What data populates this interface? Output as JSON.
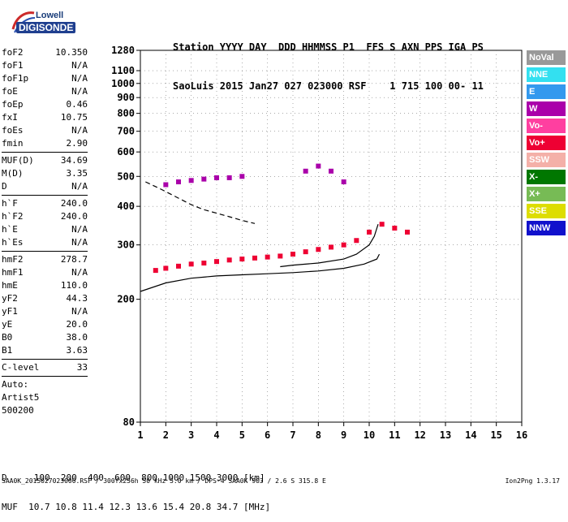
{
  "logo": {
    "top": "Lowell",
    "main": "DIGISONDE"
  },
  "header": {
    "line1": "Station YYYY DAY  DDD HHMMSS P1  FFS S AXN PPS IGA PS",
    "line2": "SaoLuis 2015 Jan27 027 023000 RSF    1 715 100 00- 11"
  },
  "params": {
    "group1": [
      {
        "name": "foF2",
        "value": "10.350"
      },
      {
        "name": "foF1",
        "value": "N/A"
      },
      {
        "name": "foF1p",
        "value": "N/A"
      },
      {
        "name": "foE",
        "value": "N/A"
      },
      {
        "name": "foEp",
        "value": "0.46"
      },
      {
        "name": "fxI",
        "value": "10.75"
      },
      {
        "name": "foEs",
        "value": "N/A"
      },
      {
        "name": "fmin",
        "value": "2.90"
      }
    ],
    "group2": [
      {
        "name": "MUF(D)",
        "value": "34.69"
      },
      {
        "name": "M(D)",
        "value": "3.35"
      },
      {
        "name": "D",
        "value": "N/A"
      }
    ],
    "group3": [
      {
        "name": "h`F",
        "value": "240.0"
      },
      {
        "name": "h`F2",
        "value": "240.0"
      },
      {
        "name": "h`E",
        "value": "N/A"
      },
      {
        "name": "h`Es",
        "value": "N/A"
      }
    ],
    "group4": [
      {
        "name": "hmF2",
        "value": "278.7"
      },
      {
        "name": "hmF1",
        "value": "N/A"
      },
      {
        "name": "hmE",
        "value": "110.0"
      },
      {
        "name": "yF2",
        "value": "44.3"
      },
      {
        "name": "yF1",
        "value": "N/A"
      },
      {
        "name": "yE",
        "value": "20.0"
      },
      {
        "name": "B0",
        "value": "38.0"
      },
      {
        "name": "B1",
        "value": "3.63"
      }
    ],
    "group5": [
      {
        "name": "C-level",
        "value": "33"
      }
    ],
    "auto_lines": [
      "Auto:",
      "Artist5",
      "500200"
    ]
  },
  "legend": [
    {
      "label": "NoVal",
      "color": "#999999"
    },
    {
      "label": "NNE",
      "color": "#33e0f0"
    },
    {
      "label": "E",
      "color": "#3399ee"
    },
    {
      "label": "W",
      "color": "#aa00aa"
    },
    {
      "label": "Vo-",
      "color": "#ff3fa0"
    },
    {
      "label": "Vo+",
      "color": "#ee0033"
    },
    {
      "label": "SSW",
      "color": "#f4b0a8"
    },
    {
      "label": "X-",
      "color": "#007700"
    },
    {
      "label": "X+",
      "color": "#77bb55"
    },
    {
      "label": "SSE",
      "color": "#dddd00"
    },
    {
      "label": "NNW",
      "color": "#1111cc"
    }
  ],
  "footer": {
    "d_line": "D     100  200  400  600  800 1000 1500 3000 [km]",
    "muf_line": "MUF  10.7 10.8 11.4 12.3 13.6 15.4 20.8 34.7 [MHz]",
    "file_line": "SAA0K_2015027023000.RSF / 300fx256h 50 kHz 5.0 km / DPS-4 SAA0K 903 / 2.6 S 315.8 E",
    "version": "Ion2Png 1.3.17"
  },
  "chart_data": {
    "type": "scatter",
    "xlim": [
      1,
      16
    ],
    "x_ticks": [
      1,
      2,
      3,
      4,
      5,
      6,
      7,
      8,
      9,
      10,
      11,
      12,
      13,
      14,
      15,
      16
    ],
    "y_scale": "log",
    "ylim": [
      80,
      1280
    ],
    "y_ticks": [
      80,
      200,
      300,
      400,
      500,
      600,
      700,
      800,
      900,
      1000,
      1100,
      1280
    ],
    "xlabel": "",
    "ylabel": "",
    "series": [
      {
        "color_key": "Vo+",
        "x": [
          1.6,
          2.0,
          2.5,
          3.0,
          3.5,
          4.0,
          4.5,
          5.0,
          5.5,
          6.0,
          6.5,
          7.0,
          7.5,
          8.0,
          8.5,
          9.0,
          9.5,
          10.0,
          10.5,
          11.0,
          11.5
        ],
        "y": [
          248,
          252,
          256,
          260,
          262,
          265,
          268,
          270,
          272,
          274,
          276,
          280,
          285,
          290,
          295,
          300,
          310,
          330,
          350,
          340,
          330
        ]
      },
      {
        "color_key": "W",
        "x": [
          2.0,
          2.5,
          3.0,
          3.5,
          4.0,
          4.5,
          5.0,
          7.5,
          8.0,
          8.5,
          9.0
        ],
        "y": [
          470,
          480,
          485,
          490,
          495,
          495,
          500,
          520,
          540,
          520,
          480
        ]
      }
    ],
    "profile_curves": [
      {
        "name": "virtual-height",
        "x": [
          1.0,
          2.0,
          3.0,
          4.0,
          5.0,
          6.0,
          7.0,
          8.0,
          9.0,
          9.8,
          10.3,
          10.4
        ],
        "y": [
          212,
          226,
          234,
          238,
          240,
          242,
          244,
          247,
          252,
          260,
          270,
          280
        ]
      },
      {
        "name": "true-height-black",
        "x": [
          6.5,
          7.0,
          8.0,
          9.0,
          9.5,
          10.0,
          10.2,
          10.35
        ],
        "y": [
          255,
          258,
          262,
          270,
          280,
          300,
          320,
          350
        ]
      },
      {
        "name": "dashed-profile",
        "x": [
          1.2,
          1.8,
          2.5,
          3.0,
          3.5,
          4.0,
          4.5,
          5.0,
          5.5
        ],
        "y": [
          480,
          455,
          425,
          405,
          390,
          380,
          370,
          360,
          352
        ]
      }
    ]
  }
}
